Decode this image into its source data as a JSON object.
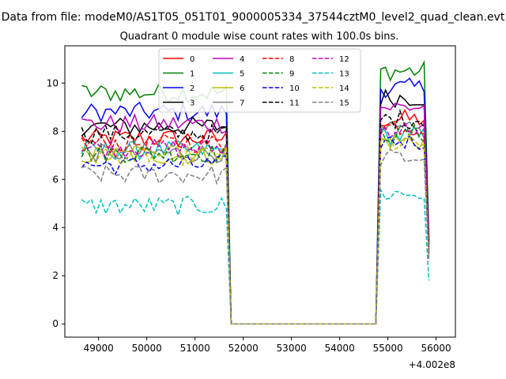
{
  "figure": {
    "suptitle": "Data from file: modeM0/AS1T05_051T01_9000005334_37544cztM0_level2_quad_clean.evt",
    "title": "Quadrant 0 module wise count rates with 100.0s bins.",
    "offset_label": "+4.002e8"
  },
  "chart_data": {
    "type": "line",
    "title": "Quadrant 0 module wise count rates with 100.0s bins.",
    "xlabel": "",
    "ylabel": "",
    "x_offset": 400200000,
    "xlim": [
      48300,
      56400
    ],
    "ylim": [
      -0.55,
      11.55
    ],
    "xticks": [
      49000,
      50000,
      51000,
      52000,
      53000,
      54000,
      55000,
      56000
    ],
    "xtick_labels": [
      "49000",
      "50000",
      "51000",
      "52000",
      "53000",
      "54000",
      "55000",
      "56000"
    ],
    "yticks": [
      0,
      2,
      4,
      6,
      8,
      10
    ],
    "ytick_labels": [
      "0",
      "2",
      "4",
      "6",
      "8",
      "10"
    ],
    "grid": false,
    "legend_position": "top-center",
    "legend_columns": 4,
    "gap": {
      "start": 51750,
      "end": 54750,
      "rate": 0
    },
    "segment1": {
      "x_start": 48650,
      "step": 100,
      "x_end": 51650
    },
    "segment2": {
      "x_start": 54850,
      "step": 100,
      "x_end": 55850
    },
    "series": [
      {
        "name": "0",
        "color": "#ff0000",
        "dash": "solid",
        "level1": 7.7,
        "level2": 8.5,
        "end": 3.4
      },
      {
        "name": "1",
        "color": "#008000",
        "dash": "solid",
        "level1": 9.6,
        "level2": 10.5,
        "end": 3.6
      },
      {
        "name": "2",
        "color": "#0000ff",
        "dash": "solid",
        "level1": 8.8,
        "level2": 9.8,
        "end": 3.5
      },
      {
        "name": "3",
        "color": "#000000",
        "dash": "solid",
        "level1": 8.2,
        "level2": 9.4,
        "end": 3.4
      },
      {
        "name": "4",
        "color": "#bf00bf",
        "dash": "solid",
        "level1": 8.3,
        "level2": 9.0,
        "end": 3.3
      },
      {
        "name": "5",
        "color": "#00bfbf",
        "dash": "solid",
        "level1": 7.2,
        "level2": 7.8,
        "end": 3.0
      },
      {
        "name": "6",
        "color": "#bfbf00",
        "dash": "solid",
        "level1": 7.0,
        "level2": 7.6,
        "end": 3.0
      },
      {
        "name": "7",
        "color": "#808080",
        "dash": "solid",
        "level1": 7.1,
        "level2": 8.0,
        "end": 3.1
      },
      {
        "name": "8",
        "color": "#ff0000",
        "dash": "dashed",
        "level1": 7.5,
        "level2": 8.2,
        "end": 3.2
      },
      {
        "name": "9",
        "color": "#008000",
        "dash": "dashed",
        "level1": 7.1,
        "level2": 7.9,
        "end": 3.0
      },
      {
        "name": "10",
        "color": "#0000ff",
        "dash": "dashed",
        "level1": 6.6,
        "level2": 7.6,
        "end": 2.9
      },
      {
        "name": "11",
        "color": "#000000",
        "dash": "dashed",
        "level1": 7.9,
        "level2": 8.5,
        "end": 3.3
      },
      {
        "name": "12",
        "color": "#bf00bf",
        "dash": "dashed",
        "level1": 7.3,
        "level2": 8.1,
        "end": 3.1
      },
      {
        "name": "13",
        "color": "#00bfbf",
        "dash": "dashed",
        "level1": 4.9,
        "level2": 5.4,
        "end": 1.8
      },
      {
        "name": "14",
        "color": "#bfbf00",
        "dash": "dashed",
        "level1": 7.0,
        "level2": 7.5,
        "end": 2.8
      },
      {
        "name": "15",
        "color": "#808080",
        "dash": "dashed",
        "level1": 6.2,
        "level2": 6.9,
        "end": 2.6
      }
    ]
  }
}
